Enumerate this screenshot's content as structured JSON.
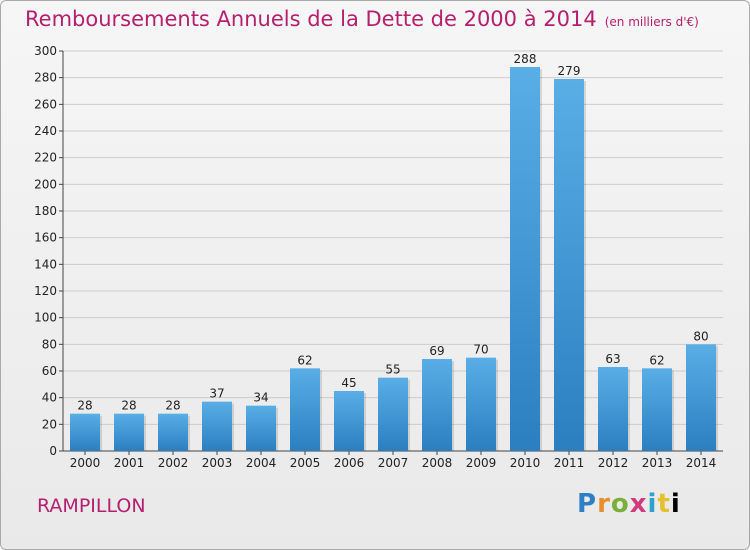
{
  "header": {
    "title": "Remboursements Annuels de la Dette de 2000 à 2014",
    "unit": "(en milliers d'€)"
  },
  "commune": "RAMPILLON",
  "logo": {
    "letters": [
      "P",
      "r",
      "o",
      "x",
      "i",
      "t",
      "i"
    ]
  },
  "colors": {
    "title": "#b5206e",
    "bar_top": "#5aaee6",
    "bar_bottom": "#2b7fc0",
    "grid": "#cccccc"
  },
  "chart_data": {
    "type": "bar",
    "title": "Remboursements Annuels de la Dette de 2000 à 2014",
    "xlabel": "",
    "ylabel": "",
    "categories": [
      "2000",
      "2001",
      "2002",
      "2003",
      "2004",
      "2005",
      "2006",
      "2007",
      "2008",
      "2009",
      "2010",
      "2011",
      "2012",
      "2013",
      "2014"
    ],
    "values": [
      28,
      28,
      28,
      37,
      34,
      62,
      45,
      55,
      69,
      70,
      288,
      279,
      63,
      62,
      80
    ],
    "ylim": [
      0,
      300
    ],
    "yticks": [
      0,
      20,
      40,
      60,
      80,
      100,
      120,
      140,
      160,
      180,
      200,
      220,
      240,
      260,
      280,
      300
    ],
    "grid": true
  }
}
